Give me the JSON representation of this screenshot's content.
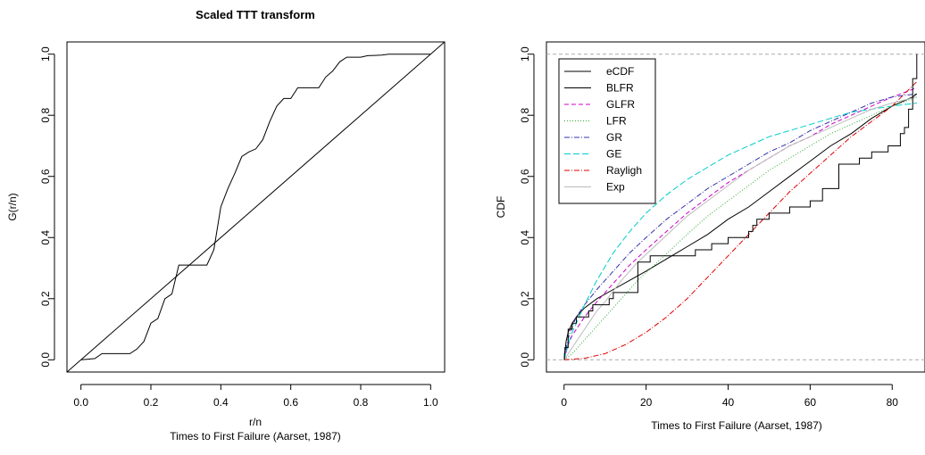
{
  "chart_data": [
    {
      "type": "line",
      "title": "Scaled TTT transform",
      "xlabel": "r/n",
      "xlabel2": "Times to First Failure (Aarset, 1987)",
      "ylabel": "G(r/n)",
      "xlim": [
        -0.04,
        1.04
      ],
      "ylim": [
        -0.04,
        1.04
      ],
      "xticks": [
        0.0,
        0.2,
        0.4,
        0.6,
        0.8,
        1.0
      ],
      "xticklabels": [
        "0.0",
        "0.2",
        "0.4",
        "0.6",
        "0.8",
        "1.0"
      ],
      "yticks": [
        0.0,
        0.2,
        0.4,
        0.6,
        0.8,
        1.0
      ],
      "yticklabels": [
        "0.0",
        "0.2",
        "0.4",
        "0.6",
        "0.8",
        "1.0"
      ],
      "grid": false,
      "series": [
        {
          "x": [
            0.0,
            0.02,
            0.04,
            0.06,
            0.08,
            0.1,
            0.12,
            0.14,
            0.16,
            0.18,
            0.2,
            0.22,
            0.24,
            0.26,
            0.28,
            0.3,
            0.32,
            0.34,
            0.36,
            0.38,
            0.4,
            0.42,
            0.44,
            0.46,
            0.48,
            0.5,
            0.52,
            0.54,
            0.56,
            0.58,
            0.6,
            0.62,
            0.64,
            0.66,
            0.68,
            0.7,
            0.72,
            0.74,
            0.76,
            0.78,
            0.8,
            0.82,
            0.84,
            0.86,
            0.88,
            0.9,
            0.92,
            0.94,
            0.96,
            0.98,
            1.0
          ],
          "y": [
            0.0,
            0.002,
            0.004,
            0.02,
            0.02,
            0.02,
            0.02,
            0.02,
            0.035,
            0.06,
            0.12,
            0.135,
            0.2,
            0.215,
            0.31,
            0.31,
            0.31,
            0.31,
            0.31,
            0.36,
            0.5,
            0.56,
            0.61,
            0.665,
            0.68,
            0.69,
            0.72,
            0.78,
            0.83,
            0.855,
            0.855,
            0.89,
            0.89,
            0.89,
            0.89,
            0.925,
            0.945,
            0.975,
            0.99,
            0.99,
            0.99,
            0.995,
            0.996,
            0.997,
            1.0,
            1.0,
            1.0,
            1.0,
            1.0,
            1.0,
            1.0
          ]
        },
        {
          "x": [
            -0.04,
            1.04
          ],
          "y": [
            -0.04,
            1.04
          ]
        }
      ]
    },
    {
      "type": "line",
      "title": "",
      "xlabel": "Times to First Failure (Aarset, 1987)",
      "ylabel": "CDF",
      "xlim": [
        -4.3,
        88
      ],
      "ylim": [
        -0.04,
        1.04
      ],
      "xticks": [
        0,
        20,
        40,
        60,
        80
      ],
      "xticklabels": [
        "0",
        "20",
        "40",
        "60",
        "80"
      ],
      "yticks": [
        0.0,
        0.2,
        0.4,
        0.6,
        0.8,
        1.0
      ],
      "yticklabels": [
        "0.0",
        "0.2",
        "0.4",
        "0.6",
        "0.8",
        "1.0"
      ],
      "hlines": [
        0,
        1
      ],
      "legend_position": "top-left",
      "series": [
        {
          "name": "eCDF",
          "color": "#000000",
          "style": "step",
          "x": [
            0.1,
            0.2,
            1,
            1,
            1,
            2,
            3,
            6,
            7,
            11,
            12,
            18,
            18,
            18,
            18,
            18,
            21,
            32,
            36,
            40,
            45,
            46,
            47,
            50,
            55,
            60,
            63,
            63,
            67,
            67,
            67,
            67,
            72,
            75,
            79,
            82,
            82,
            83,
            84,
            84,
            84,
            85,
            85,
            85,
            85,
            85,
            86,
            86
          ],
          "y": [
            0.02,
            0.04,
            0.06,
            0.08,
            0.1,
            0.12,
            0.14,
            0.16,
            0.18,
            0.2,
            0.22,
            0.24,
            0.26,
            0.28,
            0.3,
            0.32,
            0.34,
            0.36,
            0.38,
            0.4,
            0.42,
            0.44,
            0.46,
            0.48,
            0.5,
            0.52,
            0.54,
            0.56,
            0.58,
            0.6,
            0.62,
            0.64,
            0.66,
            0.68,
            0.7,
            0.72,
            0.74,
            0.76,
            0.78,
            0.8,
            0.82,
            0.84,
            0.86,
            0.88,
            0.9,
            0.92,
            0.96,
            1.0
          ]
        },
        {
          "name": "BLFR",
          "color": "#000000",
          "dash": "",
          "x": [
            0,
            0.5,
            1,
            2,
            3,
            5,
            8,
            12,
            16,
            20,
            25,
            30,
            35,
            40,
            45,
            50,
            55,
            60,
            65,
            70,
            75,
            80,
            85,
            86
          ],
          "y": [
            0,
            0.06,
            0.09,
            0.12,
            0.14,
            0.17,
            0.2,
            0.23,
            0.26,
            0.29,
            0.33,
            0.37,
            0.41,
            0.46,
            0.5,
            0.55,
            0.6,
            0.65,
            0.7,
            0.74,
            0.79,
            0.83,
            0.86,
            0.87
          ]
        },
        {
          "name": "GLFR",
          "color": "#cc00cc",
          "dash": "5,3",
          "x": [
            0,
            1,
            2,
            3,
            5,
            8,
            12,
            16,
            20,
            25,
            30,
            35,
            40,
            45,
            50,
            55,
            60,
            65,
            70,
            75,
            80,
            86
          ],
          "y": [
            0,
            0.05,
            0.08,
            0.1,
            0.14,
            0.19,
            0.25,
            0.31,
            0.36,
            0.42,
            0.48,
            0.53,
            0.58,
            0.62,
            0.66,
            0.7,
            0.73,
            0.77,
            0.8,
            0.83,
            0.86,
            0.89
          ]
        },
        {
          "name": "LFR",
          "color": "#33aa33",
          "dash": "1,2",
          "x": [
            0,
            2,
            4,
            6,
            8,
            10,
            14,
            18,
            22,
            26,
            30,
            35,
            40,
            45,
            50,
            55,
            60,
            65,
            70,
            75,
            80,
            86
          ],
          "y": [
            0,
            0.02,
            0.05,
            0.08,
            0.11,
            0.14,
            0.2,
            0.26,
            0.31,
            0.36,
            0.41,
            0.47,
            0.52,
            0.57,
            0.62,
            0.66,
            0.7,
            0.74,
            0.77,
            0.8,
            0.83,
            0.86
          ]
        },
        {
          "name": "GR",
          "color": "#3333aa",
          "dash": "6,2,1,2",
          "x": [
            0,
            1,
            2,
            3,
            5,
            8,
            12,
            16,
            20,
            25,
            30,
            35,
            40,
            45,
            50,
            55,
            60,
            65,
            70,
            75,
            80,
            86
          ],
          "y": [
            0,
            0.07,
            0.11,
            0.14,
            0.18,
            0.23,
            0.29,
            0.35,
            0.4,
            0.46,
            0.51,
            0.56,
            0.6,
            0.64,
            0.68,
            0.71,
            0.75,
            0.78,
            0.81,
            0.84,
            0.86,
            0.87
          ]
        },
        {
          "name": "GE",
          "color": "#00cccc",
          "dash": "7,3",
          "x": [
            0,
            1,
            2,
            3,
            5,
            8,
            12,
            16,
            20,
            25,
            30,
            35,
            40,
            45,
            50,
            55,
            60,
            65,
            70,
            75,
            80,
            86
          ],
          "y": [
            0,
            0.05,
            0.09,
            0.12,
            0.18,
            0.26,
            0.35,
            0.42,
            0.48,
            0.54,
            0.59,
            0.63,
            0.67,
            0.7,
            0.73,
            0.75,
            0.77,
            0.79,
            0.81,
            0.82,
            0.83,
            0.84
          ]
        },
        {
          "name": "Rayligh",
          "color": "#dd0000",
          "dash": "6,2,1,2",
          "x": [
            0,
            5,
            10,
            15,
            20,
            25,
            30,
            35,
            40,
            45,
            50,
            55,
            60,
            65,
            70,
            75,
            80,
            86
          ],
          "y": [
            0,
            0.005,
            0.02,
            0.05,
            0.09,
            0.14,
            0.2,
            0.27,
            0.34,
            0.41,
            0.48,
            0.55,
            0.61,
            0.67,
            0.73,
            0.78,
            0.83,
            0.91
          ]
        },
        {
          "name": "Exp",
          "color": "#bbbbbb",
          "dash": "",
          "x": [
            0,
            2,
            4,
            6,
            8,
            10,
            14,
            18,
            22,
            26,
            30,
            35,
            40,
            45,
            50,
            55,
            60,
            65,
            70,
            75,
            80,
            86
          ],
          "y": [
            0,
            0.04,
            0.08,
            0.12,
            0.16,
            0.19,
            0.26,
            0.32,
            0.37,
            0.42,
            0.47,
            0.52,
            0.57,
            0.62,
            0.66,
            0.7,
            0.73,
            0.76,
            0.79,
            0.82,
            0.84,
            0.86
          ]
        }
      ]
    }
  ]
}
